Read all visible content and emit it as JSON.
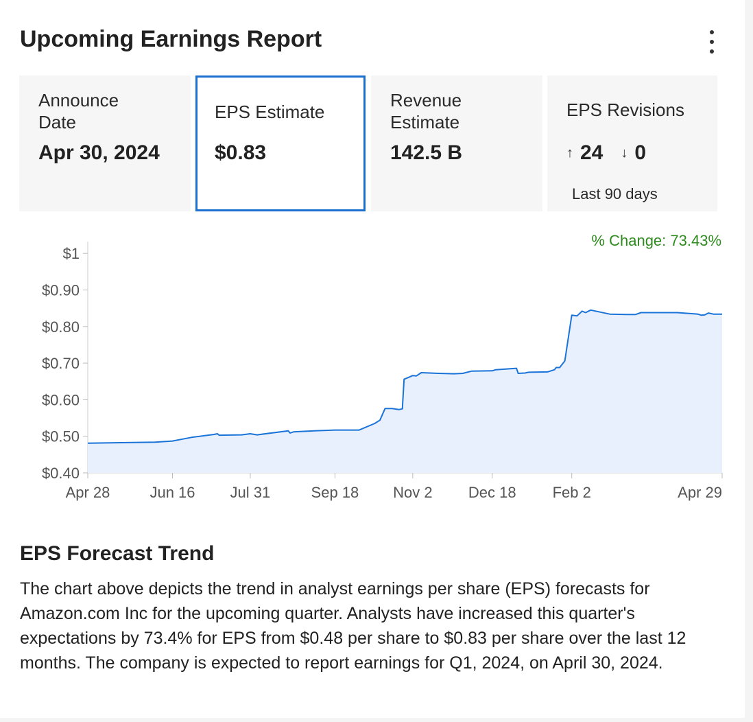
{
  "header": {
    "title": "Upcoming Earnings Report",
    "menu_icon": "kebab-menu-icon"
  },
  "tiles": {
    "announce": {
      "label_line1": "Announce",
      "label_line2": "Date",
      "value": "Apr 30, 2024"
    },
    "eps": {
      "label": "EPS Estimate",
      "value": "$0.83"
    },
    "revenue": {
      "label_line1": "Revenue",
      "label_line2": "Estimate",
      "value": "142.5 B"
    },
    "revisions": {
      "label": "EPS Revisions",
      "up_icon": "arrow-up-icon",
      "up": "24",
      "down_icon": "arrow-down-icon",
      "down": "0",
      "note": "Last 90 days"
    }
  },
  "colors": {
    "accent": "#1a6fd0",
    "positive": "#2e8b1e",
    "area_fill": "#e8f0fd"
  },
  "chart_data": {
    "type": "area",
    "change_label": "% Change: 73.43%",
    "x_ticks": [
      {
        "label": "Apr 28",
        "x": 0
      },
      {
        "label": "Jun 16",
        "x": 49
      },
      {
        "label": "Jul 31",
        "x": 94
      },
      {
        "label": "Sep 18",
        "x": 143
      },
      {
        "label": "Nov 2",
        "x": 188
      },
      {
        "label": "Dec 18",
        "x": 234
      },
      {
        "label": "Feb 2",
        "x": 280
      },
      {
        "label": "Apr 29",
        "x": 367
      }
    ],
    "y_ticks": [
      {
        "label": "$1",
        "value": 1.0
      },
      {
        "label": "$0.90",
        "value": 0.9
      },
      {
        "label": "$0.80",
        "value": 0.8
      },
      {
        "label": "$0.70",
        "value": 0.7
      },
      {
        "label": "$0.60",
        "value": 0.6
      },
      {
        "label": "$0.50",
        "value": 0.5
      },
      {
        "label": "$0.40",
        "value": 0.4
      }
    ],
    "xlim": [
      0,
      367
    ],
    "ylim": [
      0.38,
      1.02
    ],
    "x_unit": "days since Apr 28",
    "points": [
      [
        0,
        0.481
      ],
      [
        39,
        0.484
      ],
      [
        49,
        0.487
      ],
      [
        60,
        0.497
      ],
      [
        73,
        0.505
      ],
      [
        75,
        0.507
      ],
      [
        76,
        0.503
      ],
      [
        89,
        0.504
      ],
      [
        94,
        0.507
      ],
      [
        98,
        0.504
      ],
      [
        116,
        0.515
      ],
      [
        117,
        0.509
      ],
      [
        119,
        0.512
      ],
      [
        131,
        0.515
      ],
      [
        143,
        0.517
      ],
      [
        157,
        0.517
      ],
      [
        166,
        0.535
      ],
      [
        169,
        0.544
      ],
      [
        172,
        0.576
      ],
      [
        176,
        0.576
      ],
      [
        180,
        0.573
      ],
      [
        182,
        0.575
      ],
      [
        183,
        0.656
      ],
      [
        186,
        0.662
      ],
      [
        188,
        0.666
      ],
      [
        190,
        0.665
      ],
      [
        193,
        0.674
      ],
      [
        203,
        0.672
      ],
      [
        212,
        0.671
      ],
      [
        217,
        0.672
      ],
      [
        222,
        0.678
      ],
      [
        234,
        0.679
      ],
      [
        236,
        0.682
      ],
      [
        248,
        0.686
      ],
      [
        249,
        0.672
      ],
      [
        253,
        0.673
      ],
      [
        255,
        0.675
      ],
      [
        266,
        0.676
      ],
      [
        270,
        0.682
      ],
      [
        271,
        0.688
      ],
      [
        273,
        0.688
      ],
      [
        276,
        0.706
      ],
      [
        280,
        0.831
      ],
      [
        283,
        0.829
      ],
      [
        286,
        0.842
      ],
      [
        288,
        0.838
      ],
      [
        291,
        0.845
      ],
      [
        302,
        0.834
      ],
      [
        312,
        0.833
      ],
      [
        317,
        0.833
      ],
      [
        320,
        0.838
      ],
      [
        341,
        0.838
      ],
      [
        353,
        0.834
      ],
      [
        355,
        0.831
      ],
      [
        357,
        0.832
      ],
      [
        359,
        0.837
      ],
      [
        362,
        0.834
      ],
      [
        367,
        0.834
      ]
    ]
  },
  "trend": {
    "title": "EPS Forecast Trend",
    "text": "The chart above depicts the trend in analyst earnings per share (EPS) forecasts for Amazon.com Inc for the upcoming quarter. Analysts have increased this quarter's expectations by 73.4% for EPS from $0.48 per share to $0.83 per share over the last 12 months. The company is expected to report earnings for Q1, 2024, on April 30, 2024."
  }
}
